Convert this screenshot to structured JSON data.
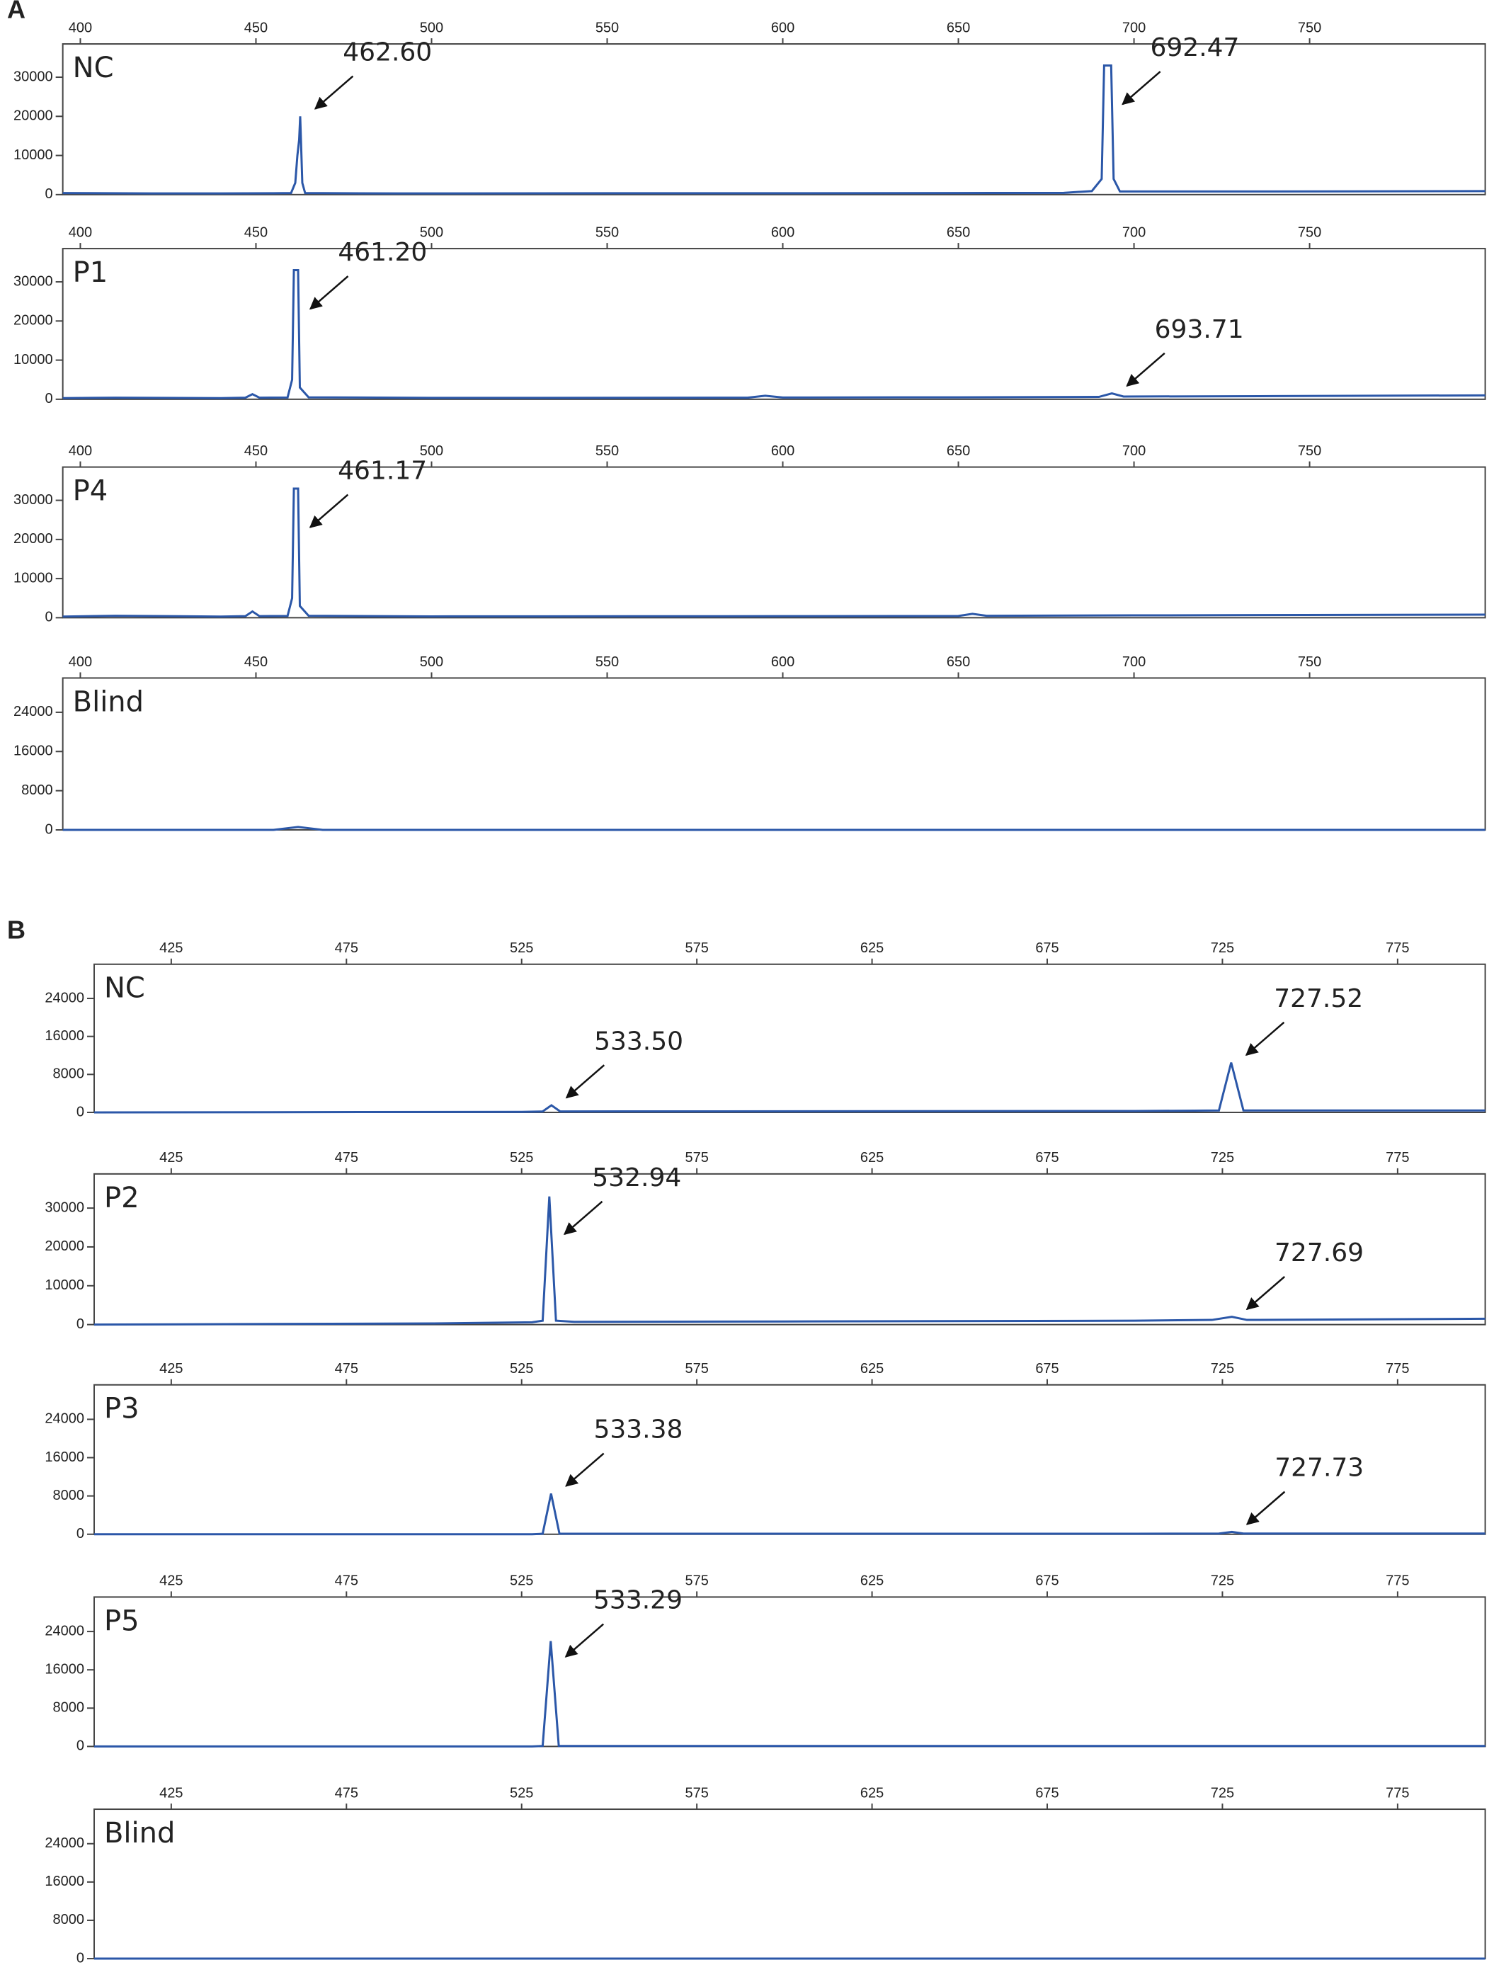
{
  "chart_data": [
    {
      "type": "line",
      "panel": "A",
      "title": "NC",
      "color": "#2b57a8",
      "xlim": [
        395,
        800
      ],
      "xticks": [
        400,
        450,
        500,
        550,
        600,
        650,
        700,
        750
      ],
      "ylim": [
        0,
        38500
      ],
      "yticks": [
        0,
        10000,
        20000,
        30000
      ],
      "x": [
        395,
        420,
        440,
        455,
        460,
        461.2,
        461.8,
        462.3,
        462.6,
        463.2,
        464,
        490,
        550,
        600,
        650,
        680,
        688,
        690.8,
        691.5,
        693.5,
        694.2,
        696,
        740,
        800
      ],
      "values": [
        400,
        300,
        300,
        350,
        400,
        3000,
        10000,
        14000,
        20000,
        3000,
        400,
        300,
        350,
        350,
        400,
        450,
        900,
        4000,
        33000,
        33000,
        4000,
        800,
        800,
        900
      ],
      "annotations": [
        {
          "value": 462.6,
          "label": "462.60"
        },
        {
          "value": 692.47,
          "label": "692.47"
        }
      ]
    },
    {
      "type": "line",
      "title": "P1",
      "color": "#2b57a8",
      "xlim": [
        395,
        800
      ],
      "xticks": [
        400,
        450,
        500,
        550,
        600,
        650,
        700,
        750
      ],
      "ylim": [
        0,
        38500
      ],
      "yticks": [
        0,
        10000,
        20000,
        30000
      ],
      "x": [
        395,
        410,
        440,
        447,
        449,
        451,
        459,
        460.3,
        460.8,
        462,
        462.5,
        465,
        500,
        590,
        595,
        600,
        650,
        690,
        693.7,
        697,
        740,
        800
      ],
      "values": [
        300,
        400,
        300,
        400,
        1300,
        400,
        450,
        5000,
        33000,
        33000,
        3000,
        500,
        350,
        400,
        900,
        450,
        500,
        600,
        1500,
        700,
        800,
        1000
      ],
      "annotations": [
        {
          "value": 461.2,
          "label": "461.20"
        },
        {
          "value": 693.71,
          "label": "693.71"
        }
      ]
    },
    {
      "type": "line",
      "title": "P4",
      "color": "#2b57a8",
      "xlim": [
        395,
        800
      ],
      "xticks": [
        400,
        450,
        500,
        550,
        600,
        650,
        700,
        750
      ],
      "ylim": [
        0,
        38500
      ],
      "yticks": [
        0,
        10000,
        20000,
        30000
      ],
      "x": [
        395,
        410,
        440,
        447,
        449,
        451,
        459,
        460.3,
        460.8,
        462,
        462.5,
        465,
        500,
        600,
        650,
        654,
        658,
        700,
        800
      ],
      "values": [
        300,
        500,
        300,
        400,
        1600,
        400,
        450,
        5000,
        33000,
        33000,
        3000,
        500,
        350,
        400,
        450,
        1000,
        500,
        600,
        800
      ],
      "annotations": [
        {
          "value": 461.17,
          "label": "461.17"
        }
      ]
    },
    {
      "type": "line",
      "title": "Blind",
      "color": "#2b57a8",
      "xlim": [
        395,
        800
      ],
      "xticks": [
        400,
        450,
        500,
        550,
        600,
        650,
        700,
        750
      ],
      "ylim": [
        0,
        31000
      ],
      "yticks": [
        0,
        8000,
        16000,
        24000
      ],
      "x": [
        395,
        455,
        462,
        469,
        800
      ],
      "values": [
        0,
        0,
        600,
        0,
        0
      ],
      "annotations": []
    },
    {
      "type": "line",
      "panel": "B",
      "title": "NC",
      "color": "#2b57a8",
      "xlim": [
        403,
        800
      ],
      "xticks": [
        425,
        475,
        525,
        575,
        625,
        675,
        725,
        775
      ],
      "ylim": [
        0,
        31200
      ],
      "yticks": [
        0,
        8000,
        16000,
        24000
      ],
      "x": [
        403,
        525,
        531,
        533.5,
        536,
        700,
        724,
        727.5,
        731,
        800
      ],
      "values": [
        0,
        100,
        200,
        1500,
        200,
        300,
        400,
        10500,
        400,
        400
      ],
      "annotations": [
        {
          "value": 533.5,
          "label": "533.50"
        },
        {
          "value": 727.52,
          "label": "727.52"
        }
      ]
    },
    {
      "type": "line",
      "title": "P2",
      "color": "#2b57a8",
      "xlim": [
        403,
        800
      ],
      "xticks": [
        425,
        475,
        525,
        575,
        625,
        675,
        725,
        775
      ],
      "ylim": [
        0,
        38800
      ],
      "yticks": [
        0,
        10000,
        20000,
        30000
      ],
      "x": [
        403,
        500,
        528,
        531,
        532.9,
        534.8,
        540,
        600,
        700,
        722,
        727.7,
        732,
        800
      ],
      "values": [
        0,
        300,
        600,
        1000,
        33000,
        1000,
        700,
        800,
        1000,
        1200,
        2000,
        1200,
        1500
      ],
      "annotations": [
        {
          "value": 532.94,
          "label": "532.94"
        },
        {
          "value": 727.69,
          "label": "727.69"
        }
      ]
    },
    {
      "type": "line",
      "title": "P3",
      "color": "#2b57a8",
      "xlim": [
        403,
        800
      ],
      "xticks": [
        425,
        475,
        525,
        575,
        625,
        675,
        725,
        775
      ],
      "ylim": [
        0,
        31200
      ],
      "yticks": [
        0,
        8000,
        16000,
        24000
      ],
      "x": [
        403,
        528,
        531,
        533.4,
        535.8,
        700,
        724,
        727.7,
        731,
        800
      ],
      "values": [
        0,
        0,
        100,
        8500,
        100,
        100,
        150,
        500,
        150,
        150
      ],
      "annotations": [
        {
          "value": 533.38,
          "label": "533.38"
        },
        {
          "value": 727.73,
          "label": "727.73"
        }
      ]
    },
    {
      "type": "line",
      "title": "P5",
      "color": "#2b57a8",
      "xlim": [
        403,
        800
      ],
      "xticks": [
        425,
        475,
        525,
        575,
        625,
        675,
        725,
        775
      ],
      "ylim": [
        0,
        31200
      ],
      "yticks": [
        0,
        8000,
        16000,
        24000
      ],
      "x": [
        403,
        528,
        531,
        533.3,
        535.6,
        800
      ],
      "values": [
        0,
        0,
        100,
        22000,
        100,
        100
      ],
      "annotations": [
        {
          "value": 533.29,
          "label": "533.29"
        }
      ]
    },
    {
      "type": "line",
      "title": "Blind",
      "color": "#2b57a8",
      "xlim": [
        403,
        800
      ],
      "xticks": [
        425,
        475,
        525,
        575,
        625,
        675,
        725,
        775
      ],
      "ylim": [
        0,
        31200
      ],
      "yticks": [
        0,
        8000,
        16000,
        24000
      ],
      "x": [
        403,
        800
      ],
      "values": [
        0,
        0
      ],
      "annotations": []
    }
  ]
}
